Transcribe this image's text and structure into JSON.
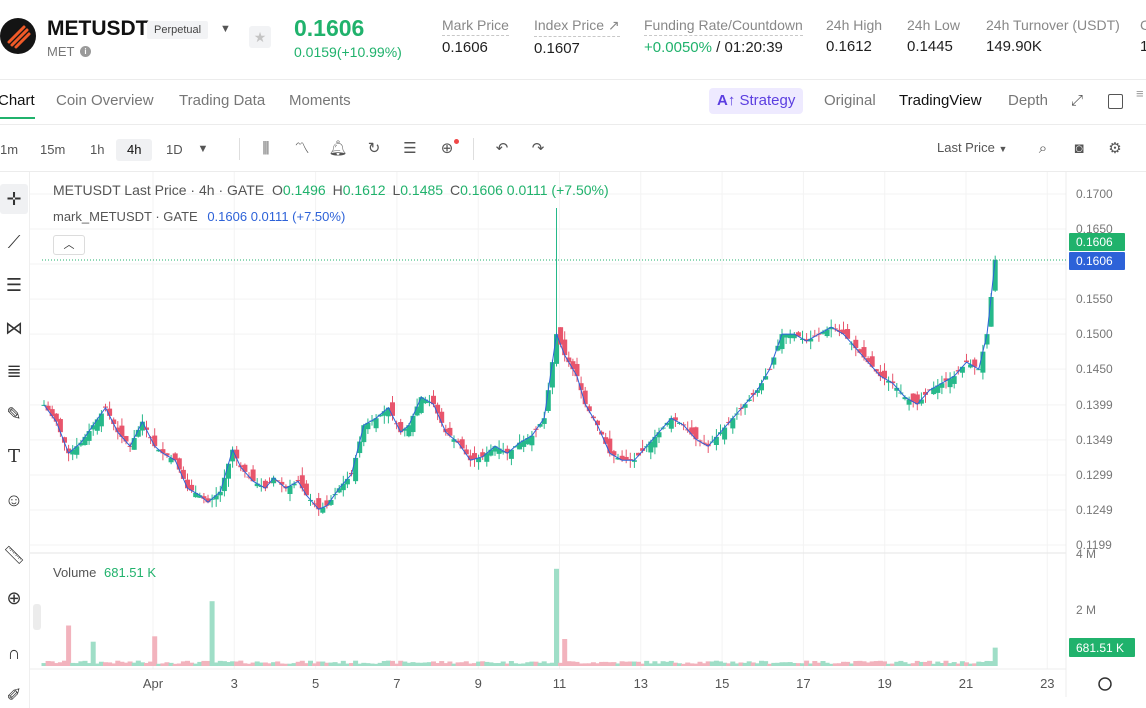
{
  "header": {
    "symbol": "METUSDT",
    "badge": "Perpetual",
    "base": "MET",
    "last_price": "0.1606",
    "change": "0.0159(+10.99%)",
    "stats": [
      {
        "label": "Mark Price",
        "value": "0.1606"
      },
      {
        "label": "Index Price ↗",
        "value": "0.1607"
      },
      {
        "label": "Funding Rate/Countdown",
        "value_green": "+0.0050%",
        "value": " / 01:20:39"
      },
      {
        "label": "24h High",
        "value": "0.1612"
      },
      {
        "label": "24h Low",
        "value": "0.1445"
      },
      {
        "label": "24h Turnover (USDT)",
        "value": "149.90K"
      },
      {
        "label": "C",
        "value": "1"
      }
    ]
  },
  "tabs": [
    "Chart",
    "Coin Overview",
    "Trading Data",
    "Moments"
  ],
  "views": {
    "strategy": "Strategy",
    "original": "Original",
    "tradingview": "TradingView",
    "depth": "Depth"
  },
  "toolbar": {
    "intervals": [
      "1m",
      "15m",
      "1h",
      "4h",
      "1D"
    ],
    "active_interval": "4h",
    "price_type": "Last Price"
  },
  "legend": {
    "title": "METUSDT Last Price · 4h · GATE",
    "o_label": "O",
    "o": "0.1496",
    "h_label": "H",
    "h": "0.1612",
    "l_label": "L",
    "l": "0.1485",
    "c_label": "C",
    "c": "0.1606",
    "chg": "0.0111 (+7.50%)",
    "mark_title": "mark_METUSDT · GATE",
    "mark_price": "0.1606",
    "mark_chg": "0.0111 (+7.50%)",
    "volume_label": "Volume",
    "volume_value": "681.51 K"
  },
  "chart_data": {
    "type": "candlestick",
    "price_axis_ticks": [
      "0.1700",
      "0.1650",
      "0.1600",
      "0.1550",
      "0.1500",
      "0.1450",
      "0.1399",
      "0.1349",
      "0.1299",
      "0.1249",
      "0.1199"
    ],
    "price_badges": {
      "last": "0.1606",
      "mark": "0.1606"
    },
    "volume_axis_ticks": [
      "4 M",
      "2 M"
    ],
    "volume_badge": "681.51 K",
    "x_ticks": [
      "Apr",
      "3",
      "5",
      "7",
      "9",
      "11",
      "13",
      "15",
      "17",
      "19",
      "21",
      "23"
    ],
    "ylim": [
      0.1199,
      0.17
    ],
    "close_path": [
      [
        0,
        0.1399
      ],
      [
        6,
        0.1375
      ],
      [
        12,
        0.133
      ],
      [
        18,
        0.1345
      ],
      [
        24,
        0.137
      ],
      [
        30,
        0.1395
      ],
      [
        36,
        0.136
      ],
      [
        42,
        0.134
      ],
      [
        48,
        0.1375
      ],
      [
        54,
        0.134
      ],
      [
        58,
        0.133
      ],
      [
        64,
        0.132
      ],
      [
        70,
        0.128
      ],
      [
        76,
        0.127
      ],
      [
        80,
        0.126
      ],
      [
        86,
        0.1275
      ],
      [
        92,
        0.1335
      ],
      [
        96,
        0.131
      ],
      [
        102,
        0.129
      ],
      [
        108,
        0.128
      ],
      [
        112,
        0.1295
      ],
      [
        118,
        0.128
      ],
      [
        124,
        0.129
      ],
      [
        128,
        0.127
      ],
      [
        134,
        0.125
      ],
      [
        138,
        0.1255
      ],
      [
        144,
        0.128
      ],
      [
        150,
        0.13
      ],
      [
        156,
        0.137
      ],
      [
        162,
        0.138
      ],
      [
        168,
        0.1395
      ],
      [
        174,
        0.136
      ],
      [
        178,
        0.137
      ],
      [
        184,
        0.141
      ],
      [
        190,
        0.14
      ],
      [
        196,
        0.136
      ],
      [
        202,
        0.1345
      ],
      [
        208,
        0.132
      ],
      [
        214,
        0.1325
      ],
      [
        220,
        0.134
      ],
      [
        226,
        0.133
      ],
      [
        232,
        0.1345
      ],
      [
        238,
        0.1355
      ],
      [
        244,
        0.138
      ],
      [
        250,
        0.15
      ],
      [
        254,
        0.147
      ],
      [
        260,
        0.144
      ],
      [
        264,
        0.14
      ],
      [
        270,
        0.137
      ],
      [
        276,
        0.133
      ],
      [
        282,
        0.132
      ],
      [
        288,
        0.132
      ],
      [
        294,
        0.134
      ],
      [
        300,
        0.136
      ],
      [
        306,
        0.138
      ],
      [
        312,
        0.137
      ],
      [
        318,
        0.135
      ],
      [
        324,
        0.134
      ],
      [
        330,
        0.136
      ],
      [
        336,
        0.138
      ],
      [
        342,
        0.14
      ],
      [
        348,
        0.142
      ],
      [
        354,
        0.145
      ],
      [
        360,
        0.15
      ],
      [
        366,
        0.15
      ],
      [
        372,
        0.149
      ],
      [
        378,
        0.15
      ],
      [
        384,
        0.151
      ],
      [
        390,
        0.15
      ],
      [
        396,
        0.148
      ],
      [
        402,
        0.146
      ],
      [
        408,
        0.144
      ],
      [
        414,
        0.143
      ],
      [
        420,
        0.141
      ],
      [
        426,
        0.14
      ],
      [
        432,
        0.142
      ],
      [
        438,
        0.143
      ],
      [
        444,
        0.144
      ],
      [
        450,
        0.146
      ],
      [
        456,
        0.145
      ],
      [
        460,
        0.15
      ],
      [
        464,
        0.1606
      ]
    ],
    "volume_spikes": [
      [
        12,
        1.5
      ],
      [
        24,
        0.9
      ],
      [
        54,
        1.1
      ],
      [
        82,
        2.4
      ],
      [
        250,
        3.6
      ],
      [
        254,
        1.0
      ],
      [
        464,
        0.68
      ]
    ]
  }
}
